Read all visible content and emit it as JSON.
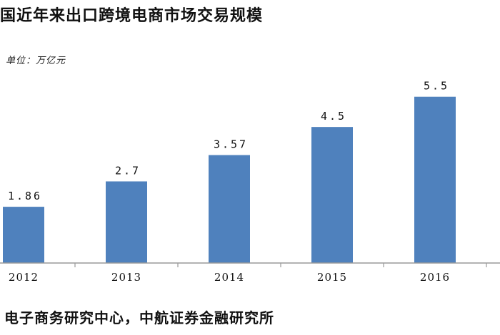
{
  "chart_data": {
    "type": "bar",
    "title": "国近年来出口跨境电商市场交易规模",
    "unit_label": "单位：万亿元",
    "categories": [
      "2012",
      "2013",
      "2014",
      "2015",
      "2016"
    ],
    "values": [
      1.86,
      2.7,
      3.57,
      4.5,
      5.5
    ],
    "value_labels": [
      "1.86",
      "2.7",
      "3.57",
      "4.5",
      "5.5"
    ],
    "bar_color": "#4f81bd",
    "axis_color": "#9a9a9a",
    "ylim": [
      0,
      8.7
    ],
    "grid": false,
    "legend": "none"
  },
  "source": "电子商务研究中心，中航证券金融研究所"
}
